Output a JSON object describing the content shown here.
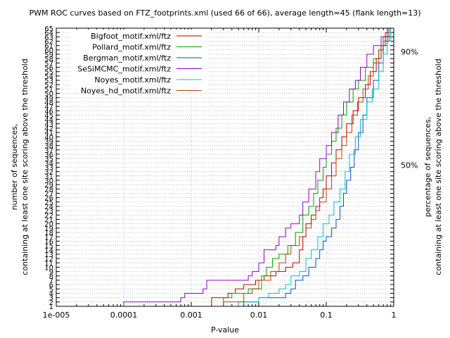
{
  "chart_data": {
    "type": "line",
    "title": "PWM ROC curves based on FTZ_footprints.xml (used 66 of 66), average length=45 (flank length=13)",
    "xlabel": "P-value",
    "ylabel_line1": "number of sequences,",
    "ylabel_line2": "containing at least one site scoring above the threshold",
    "y2label_line1": "percentage of sequences,",
    "y2label_line2": "containing at least one site scoring above the threshold",
    "x_scale": "log",
    "xlim": [
      1e-05,
      1
    ],
    "ylim": [
      1,
      65
    ],
    "x_ticks": [
      {
        "value": 1e-05,
        "label": "1e-005"
      },
      {
        "value": 0.0001,
        "label": "0.0001"
      },
      {
        "value": 0.001,
        "label": "0.001"
      },
      {
        "value": 0.01,
        "label": "0.01"
      },
      {
        "value": 0.1,
        "label": "0.1"
      },
      {
        "value": 1,
        "label": "1"
      }
    ],
    "y_ticks": [
      1,
      2,
      3,
      4,
      5,
      6,
      7,
      8,
      9,
      10,
      11,
      12,
      13,
      14,
      15,
      16,
      17,
      18,
      19,
      20,
      21,
      22,
      23,
      24,
      25,
      26,
      27,
      28,
      29,
      30,
      31,
      32,
      33,
      34,
      35,
      36,
      37,
      38,
      39,
      40,
      41,
      42,
      43,
      44,
      45,
      46,
      47,
      48,
      49,
      50,
      51,
      52,
      53,
      54,
      55,
      56,
      57,
      58,
      59,
      60,
      61,
      62,
      63,
      64,
      65
    ],
    "y2_ticks": [
      {
        "value": 33.5,
        "label": "50%"
      },
      {
        "value": 59.6,
        "label": "90%"
      }
    ],
    "grid": true,
    "legend_position": "top-left",
    "series": [
      {
        "name": "Bigfoot_motif.xml/ftz",
        "color": "#b50000",
        "points": [
          [
            0.0018,
            1
          ],
          [
            0.002,
            3
          ],
          [
            0.0035,
            4
          ],
          [
            0.0045,
            5
          ],
          [
            0.006,
            6
          ],
          [
            0.009,
            7
          ],
          [
            0.012,
            8
          ],
          [
            0.018,
            9
          ],
          [
            0.025,
            10
          ],
          [
            0.032,
            11
          ],
          [
            0.04,
            14
          ],
          [
            0.045,
            17
          ],
          [
            0.05,
            20
          ],
          [
            0.06,
            22
          ],
          [
            0.07,
            24
          ],
          [
            0.08,
            26
          ],
          [
            0.09,
            28
          ],
          [
            0.1,
            31
          ],
          [
            0.12,
            34
          ],
          [
            0.14,
            37
          ],
          [
            0.17,
            40
          ],
          [
            0.2,
            43
          ],
          [
            0.25,
            46
          ],
          [
            0.3,
            49
          ],
          [
            0.38,
            52
          ],
          [
            0.45,
            55
          ],
          [
            0.55,
            58
          ],
          [
            0.65,
            61
          ],
          [
            0.75,
            64
          ],
          [
            0.85,
            65
          ]
        ]
      },
      {
        "name": "Pollard_motif.xml/ftz",
        "color": "#00a000",
        "points": [
          [
            0.0025,
            1
          ],
          [
            0.003,
            3
          ],
          [
            0.004,
            4
          ],
          [
            0.007,
            5
          ],
          [
            0.011,
            8
          ],
          [
            0.013,
            10
          ],
          [
            0.016,
            12
          ],
          [
            0.02,
            13
          ],
          [
            0.027,
            15
          ],
          [
            0.035,
            18
          ],
          [
            0.045,
            22
          ],
          [
            0.055,
            24
          ],
          [
            0.065,
            27
          ],
          [
            0.075,
            30
          ],
          [
            0.09,
            33
          ],
          [
            0.1,
            36
          ],
          [
            0.12,
            39
          ],
          [
            0.14,
            42
          ],
          [
            0.17,
            45
          ],
          [
            0.2,
            48
          ],
          [
            0.25,
            51
          ],
          [
            0.3,
            53
          ],
          [
            0.38,
            56
          ],
          [
            0.5,
            58
          ],
          [
            0.6,
            60
          ],
          [
            0.7,
            63
          ],
          [
            0.85,
            65
          ]
        ]
      },
      {
        "name": "Bergman_motif.xml/ftz",
        "color": "#0050c0",
        "points": [
          [
            0.004,
            1
          ],
          [
            0.006,
            2
          ],
          [
            0.01,
            3
          ],
          [
            0.02,
            3
          ],
          [
            0.025,
            4
          ],
          [
            0.03,
            5
          ],
          [
            0.035,
            7
          ],
          [
            0.045,
            8
          ],
          [
            0.055,
            10
          ],
          [
            0.07,
            12
          ],
          [
            0.08,
            14
          ],
          [
            0.09,
            16
          ],
          [
            0.1,
            17
          ],
          [
            0.12,
            19
          ],
          [
            0.14,
            21
          ],
          [
            0.16,
            24
          ],
          [
            0.18,
            27
          ],
          [
            0.2,
            30
          ],
          [
            0.23,
            33
          ],
          [
            0.26,
            37
          ],
          [
            0.3,
            41
          ],
          [
            0.35,
            45
          ],
          [
            0.4,
            49
          ],
          [
            0.5,
            53
          ],
          [
            0.6,
            57
          ],
          [
            0.7,
            61
          ],
          [
            0.8,
            63
          ],
          [
            0.9,
            65
          ]
        ]
      },
      {
        "name": "SeSiMCMC_motif.xml/ftz",
        "color": "#9000c0",
        "points": [
          [
            1e-05,
            1
          ],
          [
            5e-05,
            1
          ],
          [
            0.0001,
            2
          ],
          [
            0.0007,
            3
          ],
          [
            0.0008,
            4
          ],
          [
            0.0015,
            5
          ],
          [
            0.0017,
            7
          ],
          [
            0.007,
            8
          ],
          [
            0.008,
            9
          ],
          [
            0.01,
            11
          ],
          [
            0.012,
            14
          ],
          [
            0.018,
            15
          ],
          [
            0.02,
            17
          ],
          [
            0.025,
            19
          ],
          [
            0.03,
            20
          ],
          [
            0.04,
            22
          ],
          [
            0.045,
            25
          ],
          [
            0.055,
            28
          ],
          [
            0.07,
            32
          ],
          [
            0.08,
            35
          ],
          [
            0.1,
            38
          ],
          [
            0.12,
            41
          ],
          [
            0.15,
            45
          ],
          [
            0.18,
            48
          ],
          [
            0.22,
            51
          ],
          [
            0.27,
            53
          ],
          [
            0.32,
            56
          ],
          [
            0.4,
            59
          ],
          [
            0.5,
            61
          ],
          [
            0.65,
            63
          ],
          [
            0.8,
            65
          ]
        ]
      },
      {
        "name": "Noyes_motif.xml/ftz",
        "color": "#00c0c0",
        "points": [
          [
            0.004,
            1
          ],
          [
            0.005,
            2
          ],
          [
            0.01,
            3
          ],
          [
            0.014,
            4
          ],
          [
            0.02,
            5
          ],
          [
            0.025,
            6
          ],
          [
            0.03,
            8
          ],
          [
            0.04,
            9
          ],
          [
            0.05,
            12
          ],
          [
            0.06,
            14
          ],
          [
            0.075,
            17
          ],
          [
            0.09,
            20
          ],
          [
            0.11,
            22
          ],
          [
            0.13,
            25
          ],
          [
            0.16,
            28
          ],
          [
            0.19,
            32
          ],
          [
            0.22,
            36
          ],
          [
            0.27,
            40
          ],
          [
            0.32,
            44
          ],
          [
            0.4,
            48
          ],
          [
            0.48,
            51
          ],
          [
            0.6,
            55
          ],
          [
            0.7,
            59
          ],
          [
            0.8,
            62
          ],
          [
            0.9,
            65
          ]
        ]
      },
      {
        "name": "Noyes_hd_motif.xml/ftz",
        "color": "#b04000",
        "points": [
          [
            0.002,
            1
          ],
          [
            0.003,
            2
          ],
          [
            0.006,
            4
          ],
          [
            0.008,
            5
          ],
          [
            0.01,
            7
          ],
          [
            0.015,
            9
          ],
          [
            0.02,
            11
          ],
          [
            0.025,
            13
          ],
          [
            0.03,
            15
          ],
          [
            0.04,
            17
          ],
          [
            0.05,
            19
          ],
          [
            0.06,
            21
          ],
          [
            0.07,
            23
          ],
          [
            0.08,
            25
          ],
          [
            0.1,
            28
          ],
          [
            0.12,
            31
          ],
          [
            0.14,
            35
          ],
          [
            0.17,
            38
          ],
          [
            0.2,
            41
          ],
          [
            0.24,
            45
          ],
          [
            0.29,
            48
          ],
          [
            0.35,
            51
          ],
          [
            0.42,
            54
          ],
          [
            0.5,
            57
          ],
          [
            0.6,
            60
          ],
          [
            0.7,
            62
          ],
          [
            0.85,
            65
          ]
        ]
      }
    ]
  }
}
